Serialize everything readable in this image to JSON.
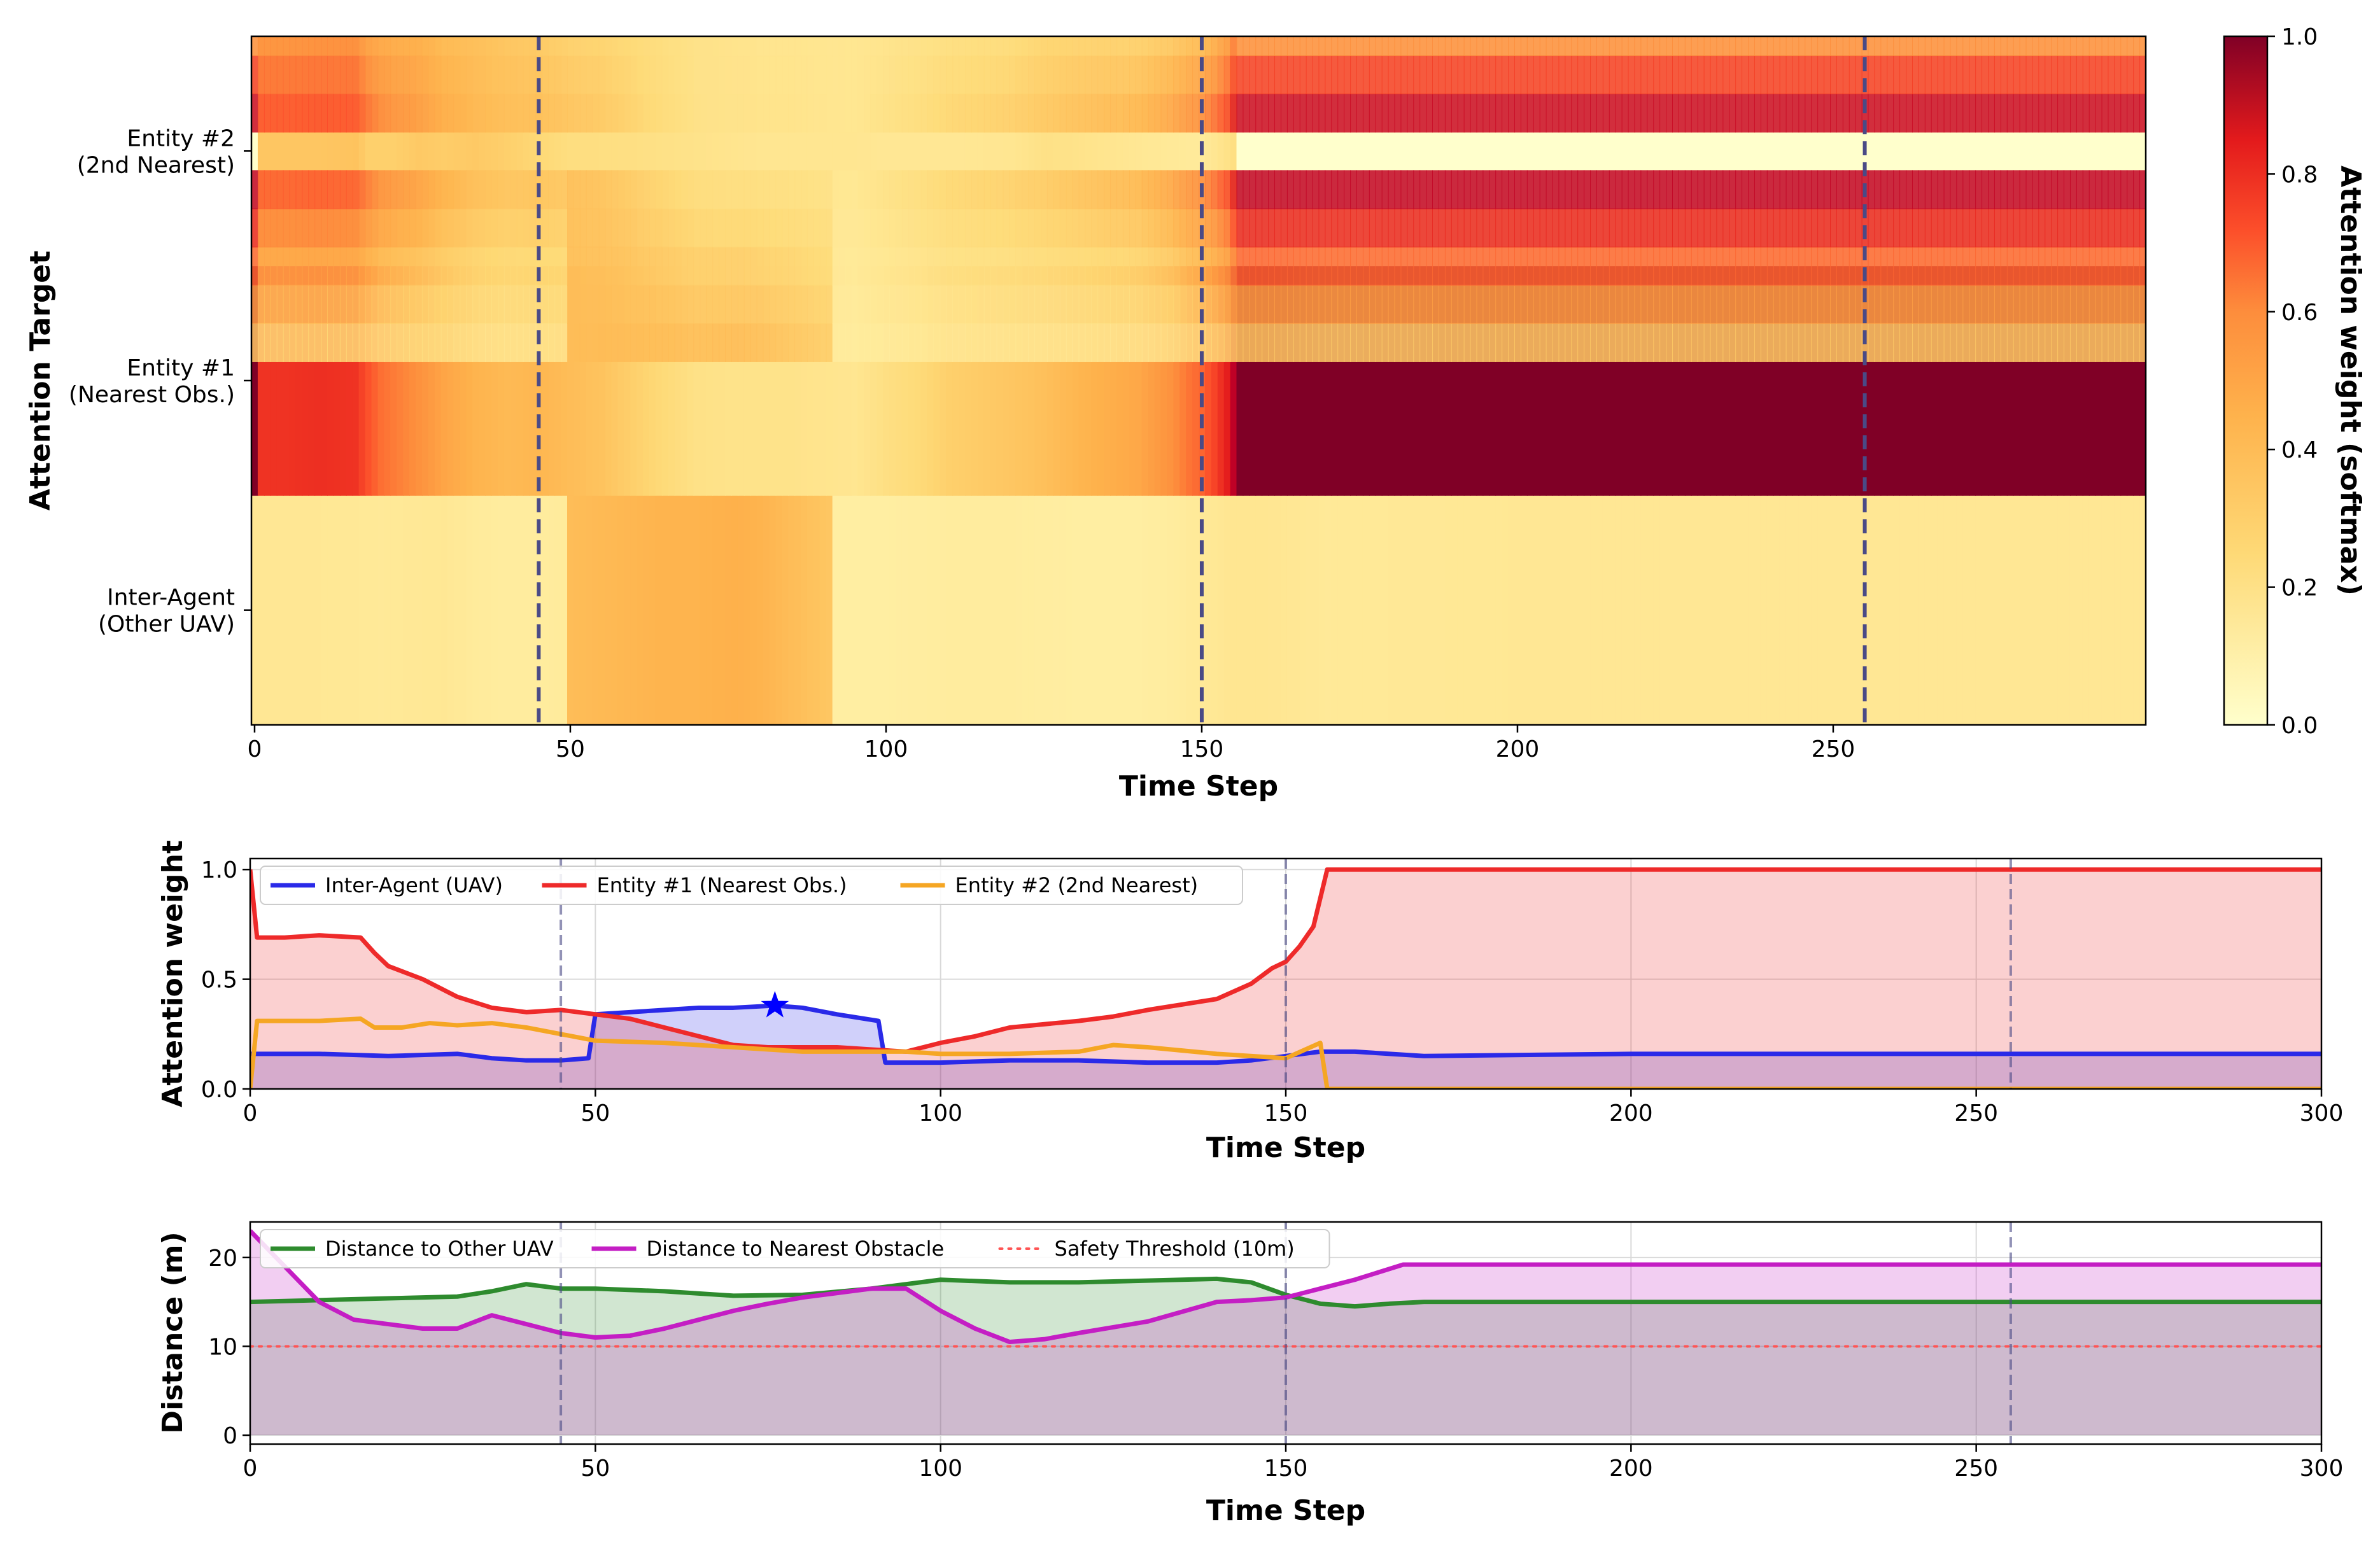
{
  "colors": {
    "inter_agent": "#2a2ae8",
    "entity1": "#ee2a2a",
    "entity2": "#f5a623",
    "green": "#2e8b2e",
    "magenta": "#c41ec4",
    "threshold": "#ff5555",
    "event_line": "#4a4a86"
  },
  "chart_data": [
    {
      "type": "heatmap",
      "title": "",
      "xlabel": "Time Step",
      "ylabel": "Attention Target",
      "xlim": [
        0,
        299
      ],
      "xticks": [
        0,
        50,
        100,
        150,
        200,
        250
      ],
      "rows": [
        "Inter-Agent\n(Other UAV)",
        "Entity #1\n(Nearest Obs.)",
        "Entity #2\n(2nd Nearest)"
      ],
      "colorbar": {
        "label": "Attention weight (softmax)",
        "range": [
          0.0,
          1.0
        ],
        "ticks": [
          "0.0",
          "0.2",
          "0.4",
          "0.6",
          "0.8",
          "1.0"
        ],
        "colormap": "YlOrRd"
      },
      "event_lines_x": [
        45,
        150,
        255
      ],
      "values_source": "same weight series as the attention-weight line chart"
    },
    {
      "type": "line",
      "xlabel": "Time Step",
      "ylabel": "Attention weight",
      "xlim": [
        0,
        300
      ],
      "ylim": [
        0,
        1.05
      ],
      "xticks": [
        0,
        50,
        100,
        150,
        200,
        250,
        300
      ],
      "yticks": [
        "0.0",
        "0.5",
        "1.0"
      ],
      "legend_position": "upper-left",
      "event_lines_x": [
        45,
        150,
        255
      ],
      "marker": {
        "x": 76,
        "y": 0.38,
        "shape": "star",
        "series": "Inter-Agent (UAV)"
      },
      "series": [
        {
          "name": "Inter-Agent (UAV)",
          "color_key": "inter_agent",
          "fill": true,
          "points": [
            [
              0,
              0.16
            ],
            [
              10,
              0.16
            ],
            [
              20,
              0.15
            ],
            [
              30,
              0.16
            ],
            [
              35,
              0.14
            ],
            [
              40,
              0.13
            ],
            [
              45,
              0.13
            ],
            [
              49,
              0.14
            ],
            [
              50,
              0.34
            ],
            [
              55,
              0.35
            ],
            [
              60,
              0.36
            ],
            [
              65,
              0.37
            ],
            [
              70,
              0.37
            ],
            [
              76,
              0.38
            ],
            [
              80,
              0.37
            ],
            [
              85,
              0.34
            ],
            [
              91,
              0.31
            ],
            [
              92,
              0.12
            ],
            [
              100,
              0.12
            ],
            [
              110,
              0.13
            ],
            [
              120,
              0.13
            ],
            [
              130,
              0.12
            ],
            [
              140,
              0.12
            ],
            [
              145,
              0.13
            ],
            [
              150,
              0.15
            ],
            [
              155,
              0.17
            ],
            [
              160,
              0.17
            ],
            [
              170,
              0.15
            ],
            [
              200,
              0.16
            ],
            [
              250,
              0.16
            ],
            [
              300,
              0.16
            ]
          ]
        },
        {
          "name": "Entity #1 (Nearest Obs.)",
          "color_key": "entity1",
          "fill": true,
          "points": [
            [
              0,
              1.0
            ],
            [
              1,
              0.69
            ],
            [
              5,
              0.69
            ],
            [
              10,
              0.7
            ],
            [
              16,
              0.69
            ],
            [
              18,
              0.62
            ],
            [
              20,
              0.56
            ],
            [
              25,
              0.5
            ],
            [
              30,
              0.42
            ],
            [
              35,
              0.37
            ],
            [
              40,
              0.35
            ],
            [
              45,
              0.36
            ],
            [
              50,
              0.34
            ],
            [
              55,
              0.32
            ],
            [
              60,
              0.28
            ],
            [
              65,
              0.24
            ],
            [
              70,
              0.2
            ],
            [
              75,
              0.19
            ],
            [
              80,
              0.19
            ],
            [
              85,
              0.19
            ],
            [
              90,
              0.18
            ],
            [
              95,
              0.17
            ],
            [
              100,
              0.21
            ],
            [
              105,
              0.24
            ],
            [
              110,
              0.28
            ],
            [
              120,
              0.31
            ],
            [
              125,
              0.33
            ],
            [
              130,
              0.36
            ],
            [
              140,
              0.41
            ],
            [
              145,
              0.48
            ],
            [
              148,
              0.55
            ],
            [
              150,
              0.58
            ],
            [
              152,
              0.65
            ],
            [
              154,
              0.74
            ],
            [
              156,
              1.0
            ],
            [
              300,
              1.0
            ]
          ]
        },
        {
          "name": "Entity #2 (2nd Nearest)",
          "color_key": "entity2",
          "fill": false,
          "points": [
            [
              0,
              0.0
            ],
            [
              1,
              0.31
            ],
            [
              10,
              0.31
            ],
            [
              16,
              0.32
            ],
            [
              18,
              0.28
            ],
            [
              22,
              0.28
            ],
            [
              26,
              0.3
            ],
            [
              30,
              0.29
            ],
            [
              35,
              0.3
            ],
            [
              40,
              0.28
            ],
            [
              45,
              0.25
            ],
            [
              50,
              0.22
            ],
            [
              60,
              0.21
            ],
            [
              70,
              0.19
            ],
            [
              80,
              0.17
            ],
            [
              90,
              0.17
            ],
            [
              95,
              0.17
            ],
            [
              100,
              0.16
            ],
            [
              110,
              0.16
            ],
            [
              120,
              0.17
            ],
            [
              125,
              0.2
            ],
            [
              130,
              0.19
            ],
            [
              140,
              0.16
            ],
            [
              150,
              0.14
            ],
            [
              155,
              0.21
            ],
            [
              156,
              0.0
            ],
            [
              300,
              0.0
            ]
          ]
        }
      ]
    },
    {
      "type": "line",
      "xlabel": "Time Step",
      "ylabel": "Distance (m)",
      "xlim": [
        0,
        300
      ],
      "ylim": [
        -1,
        24
      ],
      "xticks": [
        0,
        50,
        100,
        150,
        200,
        250,
        300
      ],
      "yticks": [
        "0",
        "10",
        "20"
      ],
      "legend_position": "upper-left",
      "event_lines_x": [
        45,
        150,
        255
      ],
      "series": [
        {
          "name": "Distance to Other UAV",
          "color_key": "green",
          "fill": true,
          "points": [
            [
              0,
              15
            ],
            [
              10,
              15.2
            ],
            [
              20,
              15.4
            ],
            [
              30,
              15.6
            ],
            [
              35,
              16.2
            ],
            [
              40,
              17
            ],
            [
              45,
              16.5
            ],
            [
              50,
              16.5
            ],
            [
              60,
              16.2
            ],
            [
              70,
              15.7
            ],
            [
              80,
              15.8
            ],
            [
              90,
              16.5
            ],
            [
              100,
              17.5
            ],
            [
              110,
              17.2
            ],
            [
              120,
              17.2
            ],
            [
              130,
              17.4
            ],
            [
              140,
              17.6
            ],
            [
              145,
              17.2
            ],
            [
              150,
              15.8
            ],
            [
              155,
              14.8
            ],
            [
              160,
              14.5
            ],
            [
              165,
              14.8
            ],
            [
              170,
              15
            ],
            [
              200,
              15
            ],
            [
              250,
              15
            ],
            [
              300,
              15
            ]
          ]
        },
        {
          "name": "Distance to Nearest Obstacle",
          "color_key": "magenta",
          "fill": true,
          "points": [
            [
              0,
              23
            ],
            [
              5,
              19
            ],
            [
              10,
              15
            ],
            [
              15,
              13
            ],
            [
              20,
              12.5
            ],
            [
              25,
              12
            ],
            [
              30,
              12
            ],
            [
              35,
              13.5
            ],
            [
              40,
              12.5
            ],
            [
              45,
              11.5
            ],
            [
              50,
              11
            ],
            [
              55,
              11.2
            ],
            [
              60,
              12
            ],
            [
              65,
              13
            ],
            [
              70,
              14
            ],
            [
              75,
              14.8
            ],
            [
              80,
              15.5
            ],
            [
              90,
              16.5
            ],
            [
              95,
              16.5
            ],
            [
              100,
              14
            ],
            [
              105,
              12
            ],
            [
              110,
              10.5
            ],
            [
              115,
              10.8
            ],
            [
              120,
              11.5
            ],
            [
              130,
              12.8
            ],
            [
              140,
              15
            ],
            [
              145,
              15.2
            ],
            [
              150,
              15.5
            ],
            [
              155,
              16.5
            ],
            [
              160,
              17.5
            ],
            [
              167,
              19.2
            ],
            [
              200,
              19.2
            ],
            [
              250,
              19.2
            ],
            [
              300,
              19.2
            ]
          ]
        },
        {
          "name": "Safety Threshold (10m)",
          "color_key": "threshold",
          "fill": false,
          "dotted": true,
          "points": [
            [
              0,
              10
            ],
            [
              300,
              10
            ]
          ]
        }
      ]
    }
  ]
}
